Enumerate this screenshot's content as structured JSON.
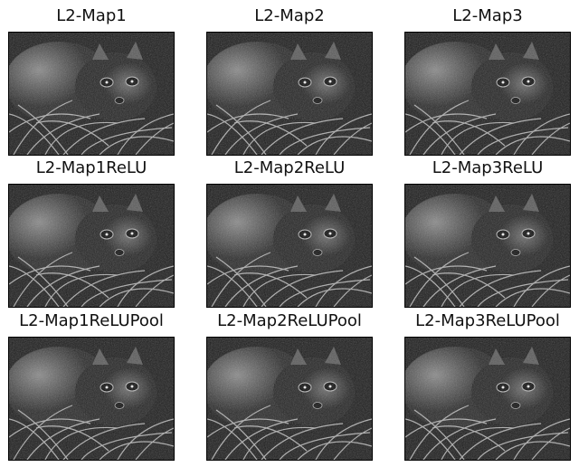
{
  "colors": {
    "background": "#ffffff",
    "image_dark": "#1a1a1a",
    "image_light": "#9a9a9a",
    "frame": "#000000"
  },
  "panels": [
    {
      "title": "L2-Map1"
    },
    {
      "title": "L2-Map2"
    },
    {
      "title": "L2-Map3"
    },
    {
      "title": "L2-Map1ReLU"
    },
    {
      "title": "L2-Map2ReLU"
    },
    {
      "title": "L2-Map3ReLU"
    },
    {
      "title": "L2-Map1ReLUPool"
    },
    {
      "title": "L2-Map2ReLUPool"
    },
    {
      "title": "L2-Map3ReLUPool"
    }
  ]
}
